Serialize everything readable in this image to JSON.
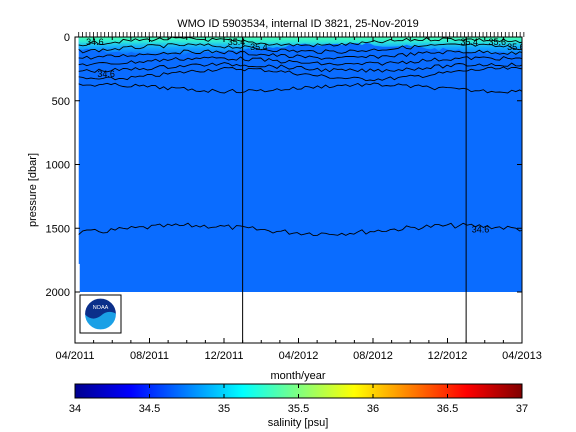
{
  "chart_data": {
    "type": "heatmap",
    "title": "WMO ID 5903534, internal ID 3821, 25-Nov-2019",
    "xlabel": "month/year",
    "ylabel": "pressure [dbar]",
    "x_tick_labels": [
      "04/2011",
      "08/2011",
      "12/2011",
      "04/2012",
      "08/2012",
      "12/2012",
      "04/2013"
    ],
    "x_tick_months": [
      0,
      4,
      8,
      12,
      16,
      20,
      24
    ],
    "x_range_months": [
      0,
      24
    ],
    "y_tick_values": [
      0,
      500,
      1000,
      1500,
      2000
    ],
    "y_tick_labels": [
      "0",
      "500",
      "1000",
      "1500",
      "2000"
    ],
    "ylim": [
      2400,
      0
    ],
    "y_reversed": true,
    "colorbar": {
      "label": "salinity [psu]",
      "range": [
        34,
        37
      ],
      "tick_values": [
        34,
        34.5,
        35,
        35.5,
        36,
        36.5,
        37
      ],
      "tick_labels": [
        "34",
        "34.5",
        "35",
        "35.5",
        "36",
        "36.5",
        "37"
      ],
      "colormap": "jet"
    },
    "year_boundaries_months": [
      9,
      21
    ],
    "data_extent_months": [
      0.2,
      24.1
    ],
    "profile_max_pressure": 2000,
    "deep_salinity": 34.58,
    "surface_salinity_range": [
      34.9,
      35.6
    ],
    "contours": [
      {
        "label": "34.6",
        "mean_pressure": 1510
      },
      {
        "label": "34.6",
        "mean_pressure": 290
      }
    ],
    "contour_labels_shown": [
      "34.6",
      "35.4",
      "35.4",
      "35.4",
      "35.6",
      "35.6",
      "34.6",
      "34.6"
    ],
    "logo": {
      "text": "NOAA"
    }
  }
}
